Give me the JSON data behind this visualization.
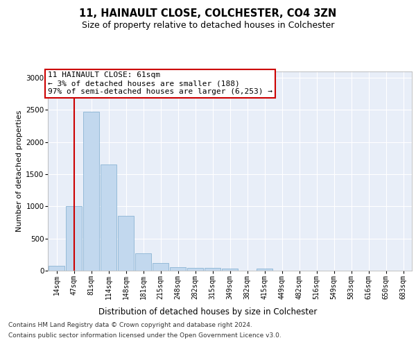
{
  "title1": "11, HAINAULT CLOSE, COLCHESTER, CO4 3ZN",
  "title2": "Size of property relative to detached houses in Colchester",
  "xlabel": "Distribution of detached houses by size in Colchester",
  "ylabel": "Number of detached properties",
  "categories": [
    "14sqm",
    "47sqm",
    "81sqm",
    "114sqm",
    "148sqm",
    "181sqm",
    "215sqm",
    "248sqm",
    "282sqm",
    "315sqm",
    "349sqm",
    "382sqm",
    "415sqm",
    "449sqm",
    "482sqm",
    "516sqm",
    "549sqm",
    "583sqm",
    "616sqm",
    "650sqm",
    "683sqm"
  ],
  "values": [
    75,
    1000,
    2470,
    1650,
    850,
    270,
    120,
    55,
    45,
    40,
    35,
    0,
    30,
    0,
    0,
    0,
    0,
    0,
    0,
    0,
    0
  ],
  "bar_color": "#c2d8ee",
  "bar_edge_color": "#8ab4d4",
  "annotation_line1": "11 HAINAULT CLOSE: 61sqm",
  "annotation_line2": "← 3% of detached houses are smaller (188)",
  "annotation_line3": "97% of semi-detached houses are larger (6,253) →",
  "annotation_box_facecolor": "white",
  "annotation_box_edgecolor": "#cc0000",
  "vline_color": "#cc0000",
  "vline_x_index": 1,
  "ylim": [
    0,
    3100
  ],
  "yticks": [
    0,
    500,
    1000,
    1500,
    2000,
    2500,
    3000
  ],
  "bg_color": "#e8eef8",
  "grid_color": "white",
  "footer_line1": "Contains HM Land Registry data © Crown copyright and database right 2024.",
  "footer_line2": "Contains public sector information licensed under the Open Government Licence v3.0."
}
